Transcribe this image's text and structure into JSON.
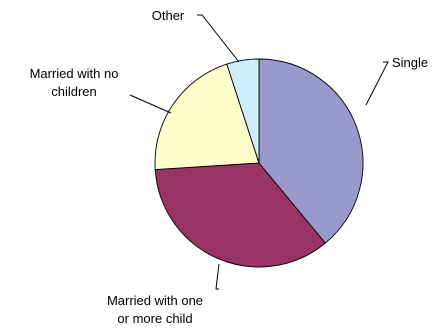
{
  "chart_data": {
    "type": "pie",
    "title": "",
    "slices": [
      {
        "label_lines": [
          "Single"
        ],
        "value": 39,
        "color": "#9999cc"
      },
      {
        "label_lines": [
          "Married with one",
          "or more child"
        ],
        "value": 35,
        "color": "#993366"
      },
      {
        "label_lines": [
          "Married with no",
          "children"
        ],
        "value": 21,
        "color": "#ffffcc"
      },
      {
        "label_lines": [
          "Other"
        ],
        "value": 5,
        "color": "#cceeff"
      }
    ],
    "legend": "none",
    "labels": "outside-with-leader-lines"
  }
}
